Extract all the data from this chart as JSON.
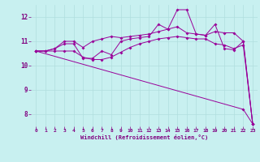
{
  "xlabel": "Windchill (Refroidissement éolien,°C)",
  "background_color": "#c8f0f0",
  "line_color": "#990099",
  "grid_color": "#b0dede",
  "text_color": "#800080",
  "xlim": [
    -0.5,
    23.5
  ],
  "ylim": [
    7.5,
    12.5
  ],
  "xticks": [
    0,
    1,
    2,
    3,
    4,
    5,
    6,
    7,
    8,
    9,
    10,
    11,
    12,
    13,
    14,
    15,
    16,
    17,
    18,
    19,
    20,
    21,
    22,
    23
  ],
  "yticks": [
    8,
    9,
    10,
    11,
    12
  ],
  "line1_x": [
    0,
    1,
    2,
    3,
    4,
    5,
    6,
    7,
    8,
    9,
    10,
    11,
    12,
    13,
    14,
    15,
    16,
    17,
    18,
    19,
    20,
    21,
    22,
    23
  ],
  "line1_y": [
    10.6,
    10.6,
    10.7,
    10.9,
    10.9,
    10.3,
    10.3,
    10.6,
    10.45,
    11.0,
    11.1,
    11.15,
    11.2,
    11.7,
    11.5,
    12.3,
    12.3,
    11.3,
    11.25,
    11.7,
    10.7,
    10.65,
    11.0,
    7.6
  ],
  "line2_x": [
    0,
    1,
    2,
    3,
    4,
    5,
    6,
    7,
    8,
    9,
    10,
    11,
    12,
    13,
    14,
    15,
    16,
    17,
    18,
    19,
    20,
    21,
    22,
    23
  ],
  "line2_y": [
    10.6,
    10.6,
    10.7,
    11.0,
    11.0,
    10.75,
    11.0,
    11.1,
    11.2,
    11.15,
    11.2,
    11.25,
    11.3,
    11.4,
    11.5,
    11.6,
    11.35,
    11.3,
    11.25,
    11.4,
    11.35,
    11.35,
    11.0,
    7.6
  ],
  "line3_x": [
    0,
    1,
    2,
    3,
    4,
    5,
    6,
    7,
    8,
    9,
    10,
    11,
    12,
    13,
    14,
    15,
    16,
    17,
    18,
    19,
    20,
    21,
    22,
    23
  ],
  "line3_y": [
    10.6,
    10.6,
    10.6,
    10.6,
    10.6,
    10.35,
    10.25,
    10.25,
    10.35,
    10.55,
    10.75,
    10.9,
    11.0,
    11.1,
    11.15,
    11.2,
    11.15,
    11.1,
    11.1,
    10.9,
    10.85,
    10.7,
    10.85,
    7.6
  ],
  "line4_x": [
    0,
    22,
    23
  ],
  "line4_y": [
    10.6,
    8.2,
    7.6
  ]
}
